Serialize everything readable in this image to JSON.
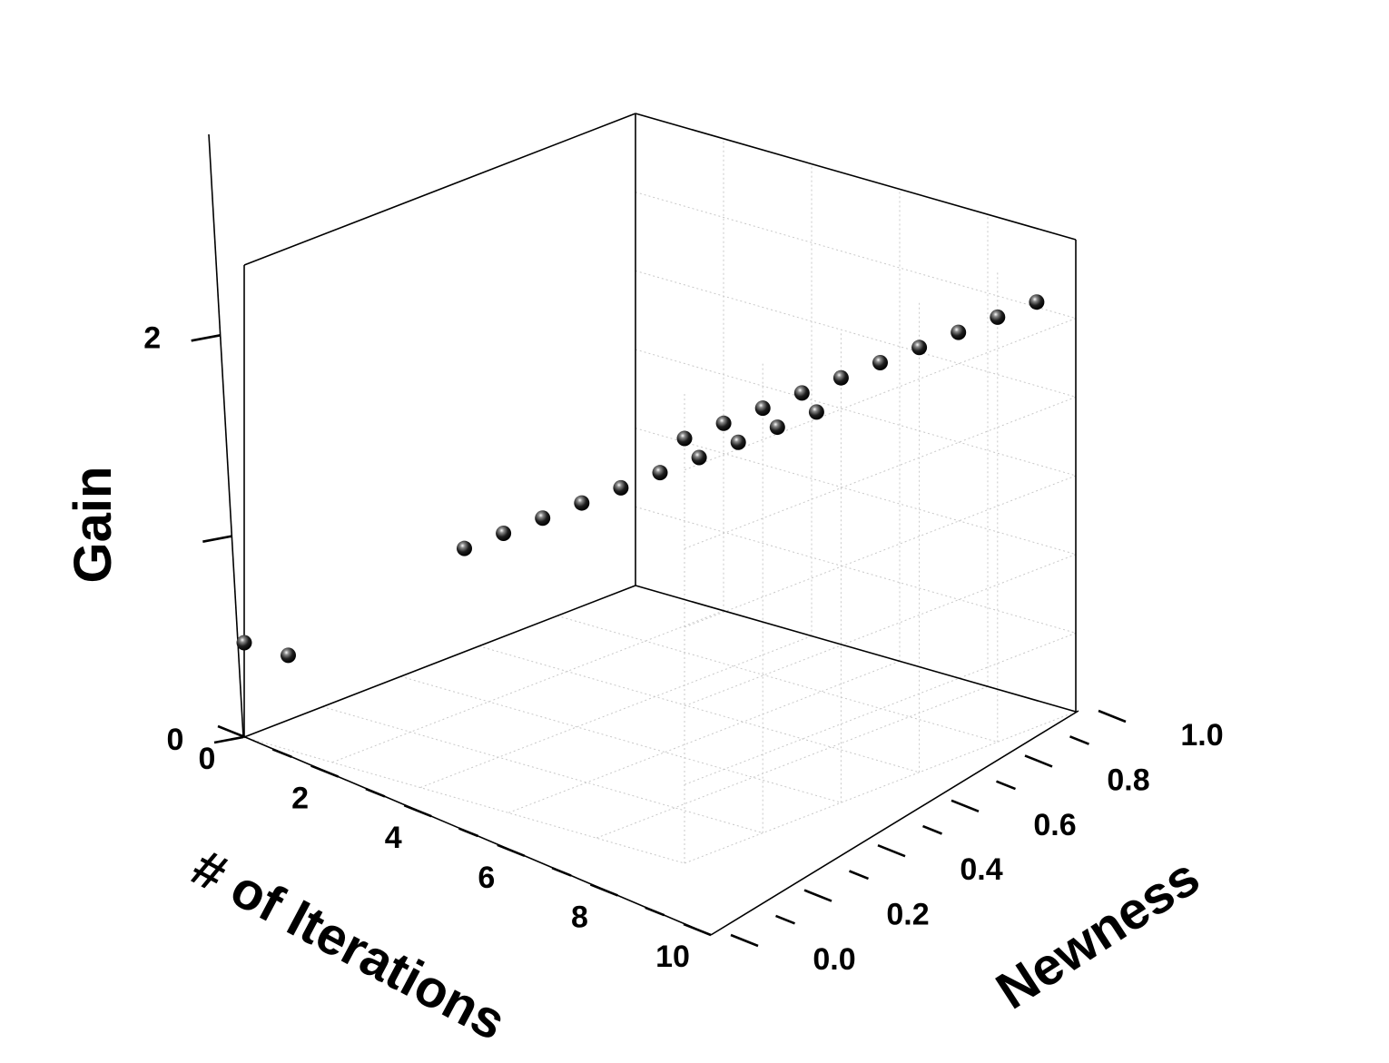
{
  "chart_data": {
    "type": "scatter",
    "title": "",
    "xlabel": "# of Iterations",
    "ylabel": "Newness",
    "zlabel": "Gain",
    "x_ticks": [
      "0",
      "2",
      "4",
      "6",
      "8",
      "10"
    ],
    "y_ticks": [
      "0.0",
      "0.2",
      "0.4",
      "0.6",
      "0.8",
      "1.0"
    ],
    "z_ticks": [
      "0",
      "2"
    ],
    "xlim": [
      0,
      10
    ],
    "ylim": [
      0,
      1.0
    ],
    "zlim": [
      0,
      3
    ],
    "grid": true,
    "marker": "sphere",
    "marker_color": "#000000",
    "series": [
      {
        "points": [
          {
            "x": 1,
            "y": 1.0,
            "z": 2.7
          },
          {
            "x": 2,
            "y": 1.0,
            "z": 2.7
          },
          {
            "x": 3,
            "y": 1.0,
            "z": 2.7
          },
          {
            "x": 4,
            "y": 1.0,
            "z": 2.7
          },
          {
            "x": 5,
            "y": 1.0,
            "z": 2.7
          },
          {
            "x": 6,
            "y": 1.0,
            "z": 2.7
          },
          {
            "x": 7,
            "y": 1.0,
            "z": 2.7
          },
          {
            "x": 8,
            "y": 1.0,
            "z": 2.7
          },
          {
            "x": 9,
            "y": 1.0,
            "z": 2.7
          },
          {
            "x": 10,
            "y": 1.0,
            "z": 2.7
          },
          {
            "x": 1,
            "y": 0.5,
            "z": 1.6
          },
          {
            "x": 2,
            "y": 0.5,
            "z": 1.6
          },
          {
            "x": 3,
            "y": 0.5,
            "z": 1.6
          },
          {
            "x": 4,
            "y": 0.5,
            "z": 1.6
          },
          {
            "x": 5,
            "y": 0.5,
            "z": 1.6
          },
          {
            "x": 6,
            "y": 0.5,
            "z": 1.6
          },
          {
            "x": 7,
            "y": 0.5,
            "z": 1.6
          },
          {
            "x": 8,
            "y": 0.5,
            "z": 1.6
          },
          {
            "x": 9,
            "y": 0.5,
            "z": 1.6
          },
          {
            "x": 10,
            "y": 0.5,
            "z": 1.6
          },
          {
            "x": 10,
            "y": 0.0,
            "z": 0.6
          },
          {
            "x": 10,
            "y": 0.1,
            "z": 0.6
          }
        ]
      }
    ]
  }
}
